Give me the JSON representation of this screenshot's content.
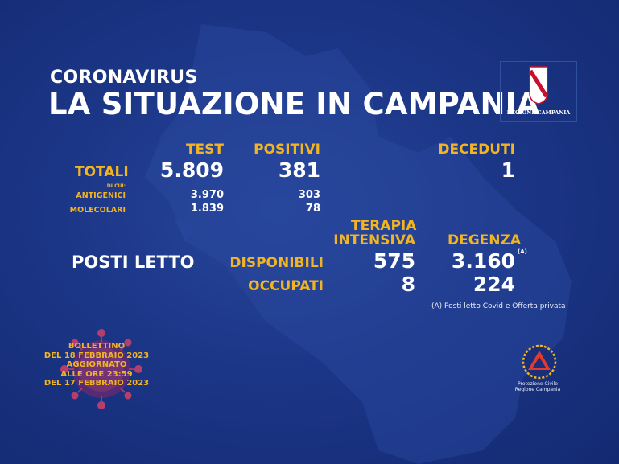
{
  "header": {
    "eyebrow": "CORONAVIRUS",
    "title": "LA SITUAZIONE IN CAMPANIA"
  },
  "region_logo": {
    "caption": "REGIONE CAMPANIA"
  },
  "totals": {
    "col_test": "TEST",
    "col_positivi": "POSITIVI",
    "col_deceduti": "DECEDUTI",
    "row_label": "TOTALI",
    "test": "5.809",
    "positivi": "381",
    "deceduti": "1",
    "di_cui": "DI CUI:",
    "antigenici_label": "ANTIGENICI",
    "antigenici_test": "3.970",
    "antigenici_positivi": "303",
    "molecolari_label": "MOLECOLARI",
    "molecolari_test": "1.839",
    "molecolari_positivi": "78"
  },
  "beds": {
    "title": "POSTI LETTO",
    "col_terapia_line1": "TERAPIA",
    "col_terapia_line2": "INTENSIVA",
    "col_degenza": "DEGENZA",
    "degenza_marker": "(A)",
    "row_disponibili": "DISPONIBILI",
    "row_occupati": "OCCUPATI",
    "ti_disponibili": "575",
    "degenza_disponibili": "3.160",
    "ti_occupati": "8",
    "degenza_occupati": "224",
    "footnote": "(A) Posti letto Covid e Offerta privata"
  },
  "bulletin": {
    "line1": "BOLLETTINO",
    "line2": "DEL 18 FEBBRAIO 2023",
    "line3": "AGGIORNATO",
    "line4": "ALLE ORE 23:59",
    "line5": "DEL 17 FEBBRAIO 2023"
  },
  "civil_protection": {
    "line1": "Protezione Civile",
    "line2": "Regione Campania"
  },
  "colors": {
    "background": "#1c3687",
    "accent": "#f2b521",
    "text": "#ffffff"
  }
}
